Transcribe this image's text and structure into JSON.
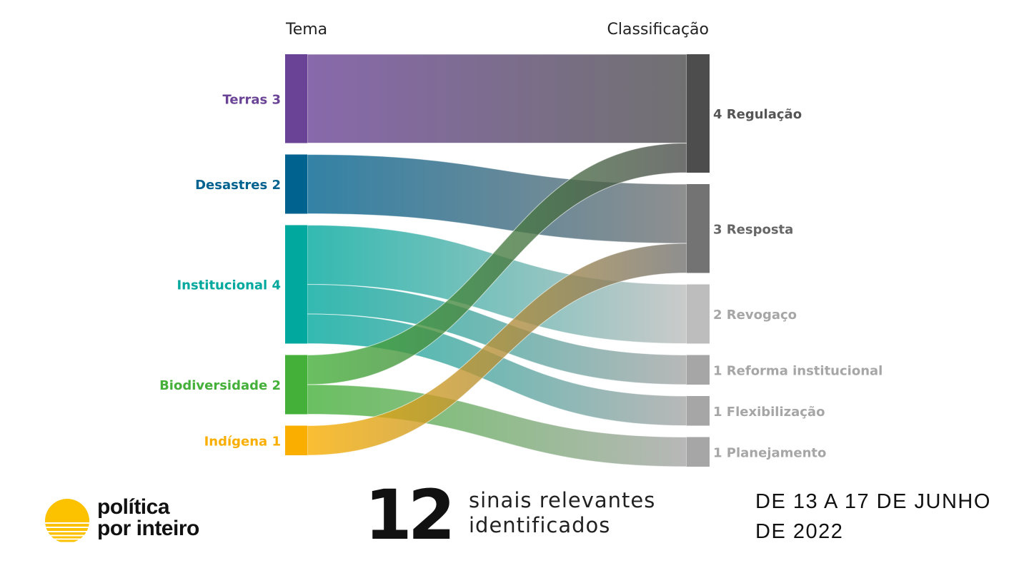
{
  "chart_data": {
    "type": "sankey",
    "left_header": "Tema",
    "right_header": "Classificação",
    "sources": [
      {
        "name": "Terras",
        "value": 3,
        "label": "Terras 3",
        "color": "#6a4396"
      },
      {
        "name": "Desastres",
        "value": 2,
        "label": "Desastres 2",
        "color": "#00628f"
      },
      {
        "name": "Institucional",
        "value": 4,
        "label": "Institucional 4",
        "color": "#00a89d"
      },
      {
        "name": "Biodiversidade",
        "value": 2,
        "label": "Biodiversidade 2",
        "color": "#44b039"
      },
      {
        "name": "Indígena",
        "value": 1,
        "label": "Indígena 1",
        "color": "#f9ae00"
      }
    ],
    "targets": [
      {
        "name": "Regulação",
        "value": 4,
        "label": "4 Regulação",
        "color": "#4d4d4d",
        "label_color": "#555555"
      },
      {
        "name": "Resposta",
        "value": 3,
        "label": "3 Resposta",
        "color": "#737373",
        "label_color": "#666666"
      },
      {
        "name": "Revogaço",
        "value": 2,
        "label": "2 Revogaço",
        "color": "#bdbdbd",
        "label_color": "#a6a6a6"
      },
      {
        "name": "Reforma institucional",
        "value": 1,
        "label": "1 Reforma institucional",
        "color": "#a6a6a6",
        "label_color": "#a6a6a6"
      },
      {
        "name": "Flexibilização",
        "value": 1,
        "label": "1 Flexibilização",
        "color": "#a6a6a6",
        "label_color": "#a6a6a6"
      },
      {
        "name": "Planejamento",
        "value": 1,
        "label": "1 Planejamento",
        "color": "#a6a6a6",
        "label_color": "#a6a6a6"
      }
    ],
    "links": [
      {
        "source": "Terras",
        "target": "Regulação",
        "value": 3
      },
      {
        "source": "Desastres",
        "target": "Resposta",
        "value": 2
      },
      {
        "source": "Institucional",
        "target": "Revogaço",
        "value": 2
      },
      {
        "source": "Institucional",
        "target": "Reforma institucional",
        "value": 1
      },
      {
        "source": "Institucional",
        "target": "Flexibilização",
        "value": 1
      },
      {
        "source": "Biodiversidade",
        "target": "Regulação",
        "value": 1
      },
      {
        "source": "Biodiversidade",
        "target": "Planejamento",
        "value": 1
      },
      {
        "source": "Indígena",
        "target": "Resposta",
        "value": 1
      }
    ]
  },
  "footer": {
    "logo_line1": "política",
    "logo_line2": "por inteiro",
    "logo_color": "#fcc200",
    "count": "12",
    "count_line1": "sinais relevantes",
    "count_line2": "identificados",
    "date_line1": "DE 13 A 17 DE JUNHO",
    "date_line2": "DE 2022"
  }
}
